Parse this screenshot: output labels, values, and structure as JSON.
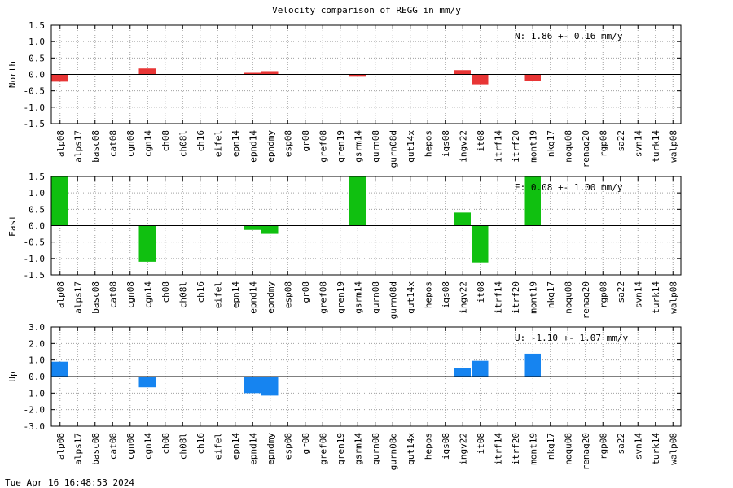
{
  "title": "Velocity comparison of REGG in mm/y",
  "footer": "Tue Apr 16 16:48:53 2024",
  "chart_data": {
    "type": "bar",
    "categories": [
      "alp08",
      "alps17",
      "basc08",
      "cat08",
      "cgn08",
      "cgn14",
      "ch08",
      "ch08l",
      "ch16",
      "eifel",
      "epn14",
      "epnd14",
      "epndmy",
      "esp08",
      "gr08",
      "gref08",
      "gren19",
      "gsrm14",
      "gurn08",
      "gurn08d",
      "gut14x",
      "hepos",
      "igs08",
      "ingv22",
      "it08",
      "itrf14",
      "itrf20",
      "mont19",
      "nkg17",
      "noqu08",
      "renag20",
      "rgp08",
      "sa22",
      "svn14",
      "turk14",
      "walp08"
    ],
    "grid": true,
    "panels": [
      {
        "ylabel": "North",
        "ylim": [
          -1.5,
          1.5
        ],
        "yticks": [
          "1.5",
          "1.0",
          "0.5",
          "0.0",
          "-0.5",
          "-1.0",
          "-1.5"
        ],
        "color": "#e83535",
        "summary": "N:   1.86 +-  0.16 mm/y",
        "values": [
          -0.22,
          0,
          0,
          0,
          0,
          0.18,
          0,
          0,
          0,
          0,
          0,
          0.05,
          0.1,
          0,
          0,
          0,
          0,
          -0.07,
          0,
          0,
          0,
          0,
          0,
          0.13,
          -0.3,
          0,
          0,
          -0.2,
          0,
          0,
          0,
          0,
          0,
          0,
          0,
          0
        ]
      },
      {
        "ylabel": "East",
        "ylim": [
          -1.5,
          1.5
        ],
        "yticks": [
          "1.5",
          "1.0",
          "0.5",
          "0.0",
          "-0.5",
          "-1.0",
          "-1.5"
        ],
        "color": "#10c010",
        "summary": "E:  0.08 +-  1.00 mm/y",
        "values": [
          1.5,
          0,
          0,
          0,
          0,
          -1.1,
          0,
          0,
          0,
          0,
          0,
          -0.13,
          -0.25,
          0,
          0,
          0,
          0,
          1.5,
          0,
          0,
          0,
          0,
          0,
          0.4,
          -1.12,
          0,
          0,
          1.5,
          0,
          0,
          0,
          0,
          0,
          0,
          0,
          0
        ]
      },
      {
        "ylabel": "Up",
        "ylim": [
          -3.0,
          3.0
        ],
        "yticks": [
          "3.0",
          "2.0",
          "1.0",
          "0.0",
          "-1.0",
          "-2.0",
          "-3.0"
        ],
        "color": "#1684f0",
        "summary": "U:  -1.10 +-  1.07 mm/y",
        "values": [
          0.9,
          0,
          0,
          0,
          0,
          -0.65,
          0,
          0,
          0,
          0,
          0,
          -1.0,
          -1.15,
          0,
          0,
          0,
          0,
          0,
          0,
          0,
          0,
          0,
          0,
          0.5,
          0.95,
          0,
          0,
          1.38,
          0,
          0,
          0,
          0,
          0,
          0,
          0,
          0
        ]
      }
    ]
  }
}
